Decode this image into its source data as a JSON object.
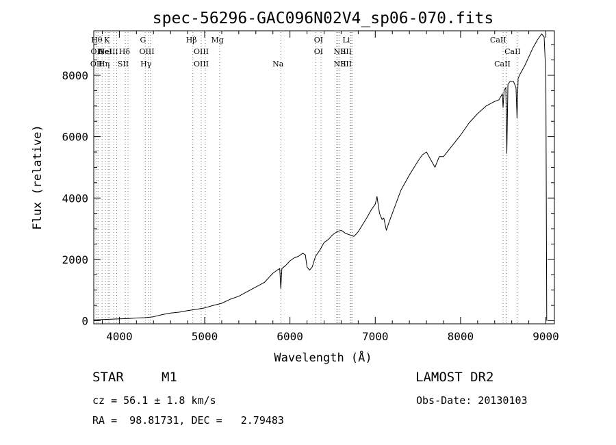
{
  "chart_data": {
    "type": "line",
    "title": "spec-56296-GAC096N02V4_sp06-070.fits",
    "xlabel": "Wavelength (Å)",
    "ylabel": "Flux (relative)",
    "xlim": [
      3700,
      9100
    ],
    "ylim": [
      -100,
      9450
    ],
    "xticks": [
      4000,
      5000,
      6000,
      7000,
      8000,
      9000
    ],
    "yticks": [
      0,
      2000,
      4000,
      6000,
      8000
    ],
    "grid": false,
    "series": [
      {
        "name": "flux",
        "x": [
          3700,
          3800,
          3900,
          4000,
          4100,
          4200,
          4300,
          4400,
          4500,
          4600,
          4700,
          4800,
          4900,
          5000,
          5100,
          5200,
          5300,
          5400,
          5500,
          5600,
          5700,
          5750,
          5800,
          5850,
          5880,
          5893,
          5905,
          5950,
          6000,
          6050,
          6100,
          6150,
          6180,
          6200,
          6230,
          6260,
          6300,
          6350,
          6400,
          6450,
          6500,
          6550,
          6600,
          6650,
          6700,
          6750,
          6800,
          6900,
          6950,
          7000,
          7020,
          7050,
          7080,
          7100,
          7130,
          7160,
          7200,
          7300,
          7400,
          7500,
          7550,
          7600,
          7650,
          7700,
          7750,
          7800,
          7900,
          8000,
          8100,
          8200,
          8300,
          8400,
          8450,
          8490,
          8498,
          8510,
          8530,
          8542,
          8555,
          8580,
          8620,
          8650,
          8662,
          8675,
          8700,
          8750,
          8800,
          8850,
          8900,
          8950,
          8980,
          9000,
          9010
        ],
        "y": [
          30,
          40,
          50,
          60,
          70,
          90,
          100,
          130,
          200,
          250,
          280,
          330,
          370,
          420,
          500,
          570,
          700,
          800,
          950,
          1100,
          1250,
          1400,
          1550,
          1650,
          1700,
          1050,
          1700,
          1800,
          1950,
          2050,
          2100,
          2200,
          2150,
          1750,
          1650,
          1750,
          2100,
          2300,
          2550,
          2650,
          2800,
          2900,
          2950,
          2850,
          2800,
          2750,
          2900,
          3350,
          3600,
          3800,
          4050,
          3500,
          3300,
          3350,
          2950,
          3200,
          3500,
          4250,
          4750,
          5200,
          5400,
          5500,
          5250,
          5000,
          5350,
          5350,
          5700,
          6050,
          6450,
          6750,
          7000,
          7150,
          7200,
          7400,
          6950,
          7500,
          7600,
          5450,
          7700,
          7800,
          7800,
          7600,
          6600,
          7900,
          8050,
          8300,
          8600,
          8900,
          9150,
          9350,
          9250,
          8000,
          0
        ]
      }
    ],
    "line_markers": [
      {
        "wave": 3727,
        "top": "",
        "mid": "",
        "bot": "OII",
        "label_x": 3730
      },
      {
        "wave": 3750,
        "top": "Hθ",
        "mid": "OII",
        "bot": "",
        "label_x": 3735
      },
      {
        "wave": 3798,
        "top": "",
        "mid": "",
        "bot": "",
        "label_x": 3798
      },
      {
        "wave": 3835,
        "top": "",
        "mid": "",
        "bot": "Hη",
        "label_x": 3820
      },
      {
        "wave": 3869,
        "top": "",
        "mid": "NeIII",
        "bot": "",
        "label_x": 3870
      },
      {
        "wave": 3889,
        "top": "",
        "mid": "HeI",
        "bot": "",
        "label_x": 3830
      },
      {
        "wave": 3934,
        "top": "K",
        "mid": "",
        "bot": "",
        "label_x": 3853
      },
      {
        "wave": 3969,
        "top": "",
        "mid": "",
        "bot": "",
        "label_x": 3969
      },
      {
        "wave": 4070,
        "top": "",
        "mid": "",
        "bot": "SII",
        "label_x": 4045
      },
      {
        "wave": 4102,
        "top": "",
        "mid": "Hδ",
        "bot": "",
        "label_x": 4060
      },
      {
        "wave": 4304,
        "top": "G",
        "mid": "",
        "bot": "",
        "label_x": 4277
      },
      {
        "wave": 4341,
        "top": "",
        "mid": "",
        "bot": "Hγ",
        "label_x": 4312
      },
      {
        "wave": 4363,
        "top": "",
        "mid": "OIII",
        "bot": "",
        "label_x": 4322
      },
      {
        "wave": 4861,
        "top": "Hβ",
        "mid": "",
        "bot": "",
        "label_x": 4845
      },
      {
        "wave": 4959,
        "top": "",
        "mid": "OIII",
        "bot": "OIII",
        "label_x": 4960
      },
      {
        "wave": 5007,
        "top": "",
        "mid": "",
        "bot": "",
        "label_x": 5007
      },
      {
        "wave": 5175,
        "top": "Mg",
        "mid": "",
        "bot": "",
        "label_x": 5150
      },
      {
        "wave": 5893,
        "top": "",
        "mid": "",
        "bot": "Na",
        "label_x": 5860
      },
      {
        "wave": 6300,
        "top": "OI",
        "mid": "OI",
        "bot": "",
        "label_x": 6335
      },
      {
        "wave": 6364,
        "top": "",
        "mid": "",
        "bot": "",
        "label_x": 6364
      },
      {
        "wave": 6548,
        "top": "",
        "mid": "NII",
        "bot": "NII",
        "label_x": 6585
      },
      {
        "wave": 6583,
        "top": "",
        "mid": "",
        "bot": "",
        "label_x": 6583
      },
      {
        "wave": 6563,
        "top": "",
        "mid": "",
        "bot": "",
        "label_x": 6563
      },
      {
        "wave": 6708,
        "top": "Li",
        "mid": "SII",
        "bot": "SII",
        "label_x": 6660
      },
      {
        "wave": 6716,
        "top": "",
        "mid": "",
        "bot": "",
        "label_x": 6716
      },
      {
        "wave": 6731,
        "top": "",
        "mid": "",
        "bot": "",
        "label_x": 6731
      },
      {
        "wave": 8498,
        "top": "CaII",
        "mid": "",
        "bot": "",
        "label_x": 8440
      },
      {
        "wave": 8542,
        "top": "",
        "mid": "",
        "bot": "CaII",
        "label_x": 8490
      },
      {
        "wave": 8662,
        "top": "",
        "mid": "CaII",
        "bot": "",
        "label_x": 8610
      }
    ]
  },
  "footer": {
    "object_class": "STAR",
    "subclass": "M1",
    "survey": "LAMOST DR2",
    "cz_text": "cz = 56.1 ± 1.8 km/s",
    "obs_date": "Obs-Date: 20130103",
    "coords": "RA =  98.81731, DEC =   2.79483"
  }
}
